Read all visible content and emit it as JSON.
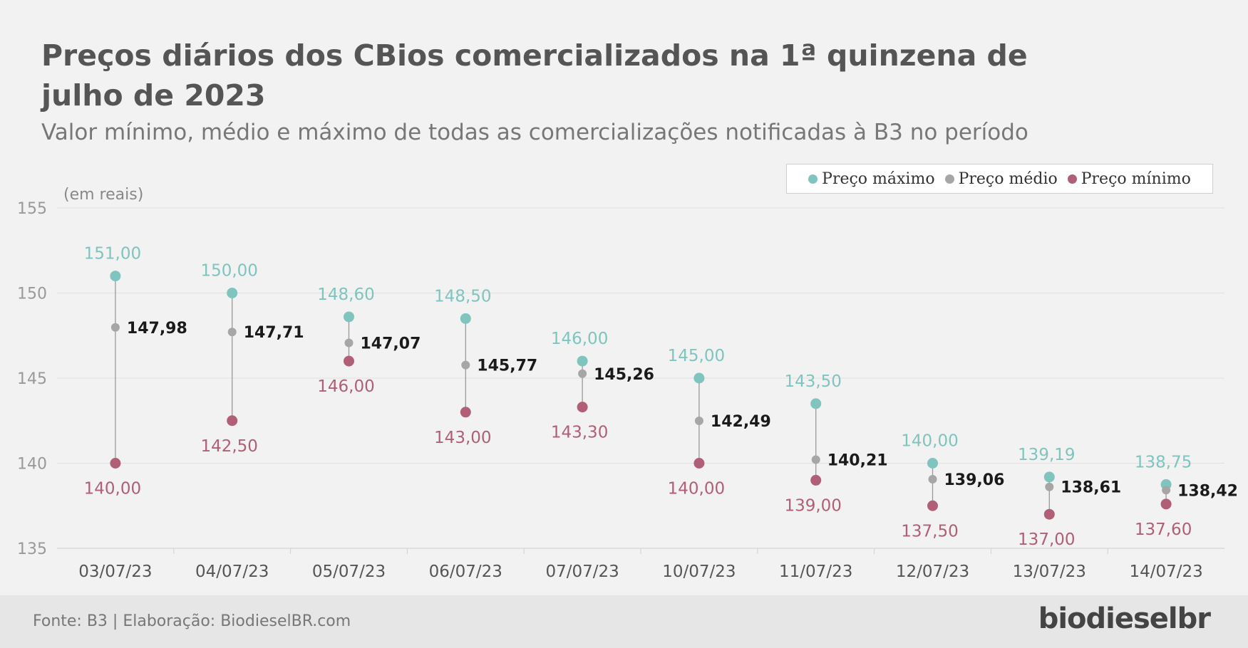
{
  "title": "Preços diários dos CBios comercializados na 1ª quinzena de julho de 2023",
  "subtitle": "Valor mínimo, médio e máximo de todas as comercializações notificadas à B3 no período",
  "footer": {
    "source": "Fonte: B3 | Elaboração: BiodieselBR.com",
    "logo": "biodieselbr"
  },
  "colors": {
    "max": "#7fc4be",
    "mean": "#a6a6a6",
    "min": "#b05f76",
    "mean_label": "#1a1a1a"
  },
  "chart_data": {
    "type": "scatter",
    "ylabel": "(em reais)",
    "ylim": [
      135,
      155
    ],
    "yticks": [
      "135",
      "140",
      "145",
      "150",
      "155"
    ],
    "grid": true,
    "legend_position": "top-right",
    "categories": [
      "03/07/23",
      "04/07/23",
      "05/07/23",
      "06/07/23",
      "07/07/23",
      "10/07/23",
      "11/07/23",
      "12/07/23",
      "13/07/23",
      "14/07/23"
    ],
    "series": [
      {
        "name": "Preço máximo",
        "values": [
          151.0,
          150.0,
          148.6,
          148.5,
          146.0,
          145.0,
          143.5,
          140.0,
          139.19,
          138.75
        ],
        "labels": [
          "151,00",
          "150,00",
          "148,60",
          "148,50",
          "146,00",
          "145,00",
          "143,50",
          "140,00",
          "139,19",
          "138,75"
        ]
      },
      {
        "name": "Preço médio",
        "values": [
          147.98,
          147.71,
          147.07,
          145.77,
          145.26,
          142.49,
          140.21,
          139.06,
          138.61,
          138.42
        ],
        "labels": [
          "147,98",
          "147,71",
          "147,07",
          "145,77",
          "145,26",
          "142,49",
          "140,21",
          "139,06",
          "138,61",
          "138,42"
        ]
      },
      {
        "name": "Preço mínimo",
        "values": [
          140.0,
          142.5,
          146.0,
          143.0,
          143.3,
          140.0,
          139.0,
          137.5,
          137.0,
          137.6
        ],
        "labels": [
          "140,00",
          "142,50",
          "146,00",
          "143,00",
          "143,30",
          "140,00",
          "139,00",
          "137,50",
          "137,00",
          "137,60"
        ]
      }
    ]
  }
}
